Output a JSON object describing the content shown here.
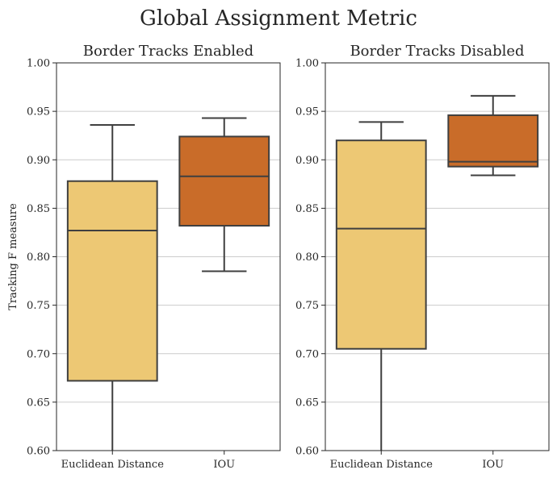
{
  "figure": {
    "title": "Global Assignment Metric"
  },
  "chart_data": [
    {
      "type": "box",
      "title": "Border Tracks Enabled",
      "xlabel": "",
      "ylabel": "Tracking F measure",
      "ylim": [
        0.6,
        1.0
      ],
      "yticks": [
        "0.60",
        "0.65",
        "0.70",
        "0.75",
        "0.80",
        "0.85",
        "0.90",
        "0.95",
        "1.00"
      ],
      "grid": true,
      "categories": [
        "Euclidean Distance",
        "IOU"
      ],
      "boxes": [
        {
          "name": "Euclidean Distance",
          "color": "#edc874",
          "whisker_low": 0.6,
          "q1": 0.672,
          "median": 0.827,
          "q3": 0.878,
          "whisker_high": 0.936
        },
        {
          "name": "IOU",
          "color": "#c96c29",
          "whisker_low": 0.785,
          "q1": 0.832,
          "median": 0.883,
          "q3": 0.924,
          "whisker_high": 0.943
        }
      ]
    },
    {
      "type": "box",
      "title": "Border Tracks Disabled",
      "xlabel": "",
      "ylabel": "",
      "ylim": [
        0.6,
        1.0
      ],
      "yticks": [
        "0.60",
        "0.65",
        "0.70",
        "0.75",
        "0.80",
        "0.85",
        "0.90",
        "0.95",
        "1.00"
      ],
      "grid": true,
      "categories": [
        "Euclidean Distance",
        "IOU"
      ],
      "boxes": [
        {
          "name": "Euclidean Distance",
          "color": "#edc874",
          "whisker_low": 0.6,
          "q1": 0.705,
          "median": 0.829,
          "q3": 0.92,
          "whisker_high": 0.939
        },
        {
          "name": "IOU",
          "color": "#c96c29",
          "whisker_low": 0.884,
          "q1": 0.893,
          "median": 0.898,
          "q3": 0.946,
          "whisker_high": 0.966
        }
      ]
    }
  ]
}
